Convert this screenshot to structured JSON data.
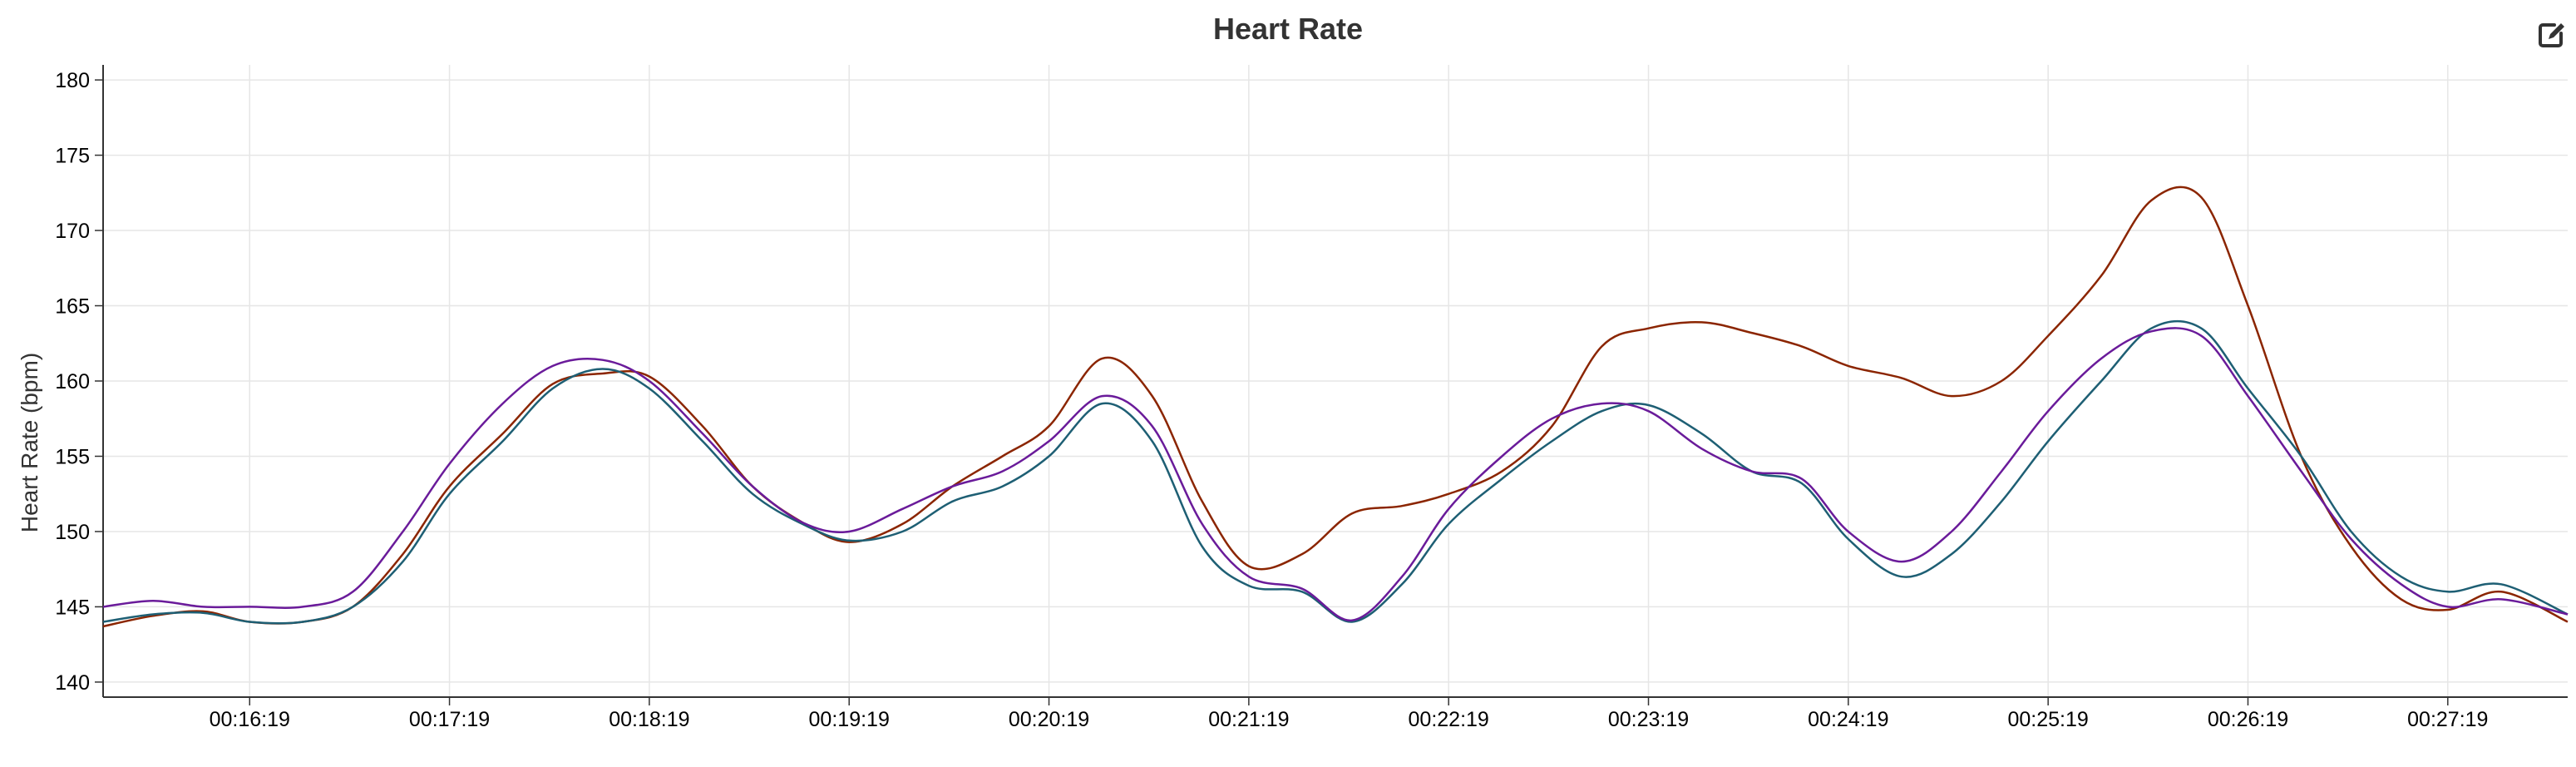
{
  "header": {
    "edit_icon": "edit-icon"
  },
  "chart_data": {
    "type": "line",
    "title": "Heart Rate",
    "xlabel": "",
    "ylabel": "Heart Rate (bpm)",
    "grid": true,
    "xlim": [
      "00:15:35",
      "00:27:55"
    ],
    "ylim": [
      139,
      181
    ],
    "x_ticks": [
      "00:16:19",
      "00:17:19",
      "00:18:19",
      "00:19:19",
      "00:20:19",
      "00:21:19",
      "00:22:19",
      "00:23:19",
      "00:24:19",
      "00:25:19",
      "00:26:19",
      "00:27:19"
    ],
    "y_ticks": [
      140,
      145,
      150,
      155,
      160,
      165,
      170,
      175,
      180
    ],
    "series": [
      {
        "color": "#8B2500",
        "points": [
          [
            "00:15:35",
            143.7
          ],
          [
            "00:15:50",
            144.4
          ],
          [
            "00:16:05",
            144.7
          ],
          [
            "00:16:19",
            144.0
          ],
          [
            "00:16:35",
            144.0
          ],
          [
            "00:16:50",
            145.0
          ],
          [
            "00:17:05",
            148.5
          ],
          [
            "00:17:19",
            153.0
          ],
          [
            "00:17:35",
            156.5
          ],
          [
            "00:17:50",
            159.8
          ],
          [
            "00:18:05",
            160.5
          ],
          [
            "00:18:19",
            160.3
          ],
          [
            "00:18:35",
            157.0
          ],
          [
            "00:18:50",
            153.0
          ],
          [
            "00:19:05",
            150.6
          ],
          [
            "00:19:19",
            149.3
          ],
          [
            "00:19:35",
            150.5
          ],
          [
            "00:19:50",
            153.0
          ],
          [
            "00:20:05",
            155.0
          ],
          [
            "00:20:19",
            157.0
          ],
          [
            "00:20:35",
            161.5
          ],
          [
            "00:20:50",
            159.0
          ],
          [
            "00:21:05",
            152.0
          ],
          [
            "00:21:19",
            147.7
          ],
          [
            "00:21:35",
            148.5
          ],
          [
            "00:21:50",
            151.2
          ],
          [
            "00:22:05",
            151.7
          ],
          [
            "00:22:19",
            152.5
          ],
          [
            "00:22:35",
            154.0
          ],
          [
            "00:22:50",
            157.0
          ],
          [
            "00:23:05",
            162.3
          ],
          [
            "00:23:19",
            163.5
          ],
          [
            "00:23:35",
            163.9
          ],
          [
            "00:23:50",
            163.2
          ],
          [
            "00:24:05",
            162.3
          ],
          [
            "00:24:19",
            161.0
          ],
          [
            "00:24:35",
            160.2
          ],
          [
            "00:24:50",
            159.0
          ],
          [
            "00:25:05",
            160.0
          ],
          [
            "00:25:19",
            163.0
          ],
          [
            "00:25:35",
            167.0
          ],
          [
            "00:25:50",
            172.0
          ],
          [
            "00:26:05",
            172.2
          ],
          [
            "00:26:19",
            165.0
          ],
          [
            "00:26:35",
            155.0
          ],
          [
            "00:26:50",
            149.0
          ],
          [
            "00:27:05",
            145.5
          ],
          [
            "00:27:19",
            144.8
          ],
          [
            "00:27:35",
            146.0
          ],
          [
            "00:27:55",
            144.0
          ]
        ]
      },
      {
        "color": "#1E5F74",
        "points": [
          [
            "00:15:35",
            144.0
          ],
          [
            "00:15:50",
            144.5
          ],
          [
            "00:16:05",
            144.6
          ],
          [
            "00:16:19",
            144.0
          ],
          [
            "00:16:35",
            144.0
          ],
          [
            "00:16:50",
            145.0
          ],
          [
            "00:17:05",
            148.0
          ],
          [
            "00:17:19",
            152.5
          ],
          [
            "00:17:35",
            156.0
          ],
          [
            "00:17:50",
            159.5
          ],
          [
            "00:18:05",
            160.8
          ],
          [
            "00:18:19",
            159.5
          ],
          [
            "00:18:35",
            156.0
          ],
          [
            "00:18:50",
            152.5
          ],
          [
            "00:19:05",
            150.5
          ],
          [
            "00:19:19",
            149.4
          ],
          [
            "00:19:35",
            150.0
          ],
          [
            "00:19:50",
            152.0
          ],
          [
            "00:20:05",
            153.0
          ],
          [
            "00:20:19",
            155.0
          ],
          [
            "00:20:35",
            158.5
          ],
          [
            "00:20:50",
            156.0
          ],
          [
            "00:21:05",
            149.0
          ],
          [
            "00:21:19",
            146.4
          ],
          [
            "00:21:35",
            146.0
          ],
          [
            "00:21:50",
            144.0
          ],
          [
            "00:22:05",
            146.5
          ],
          [
            "00:22:19",
            150.5
          ],
          [
            "00:22:35",
            153.5
          ],
          [
            "00:22:50",
            156.0
          ],
          [
            "00:23:05",
            158.0
          ],
          [
            "00:23:19",
            158.4
          ],
          [
            "00:23:35",
            156.5
          ],
          [
            "00:23:50",
            154.0
          ],
          [
            "00:24:05",
            153.2
          ],
          [
            "00:24:19",
            149.5
          ],
          [
            "00:24:35",
            147.0
          ],
          [
            "00:24:50",
            148.5
          ],
          [
            "00:25:05",
            152.0
          ],
          [
            "00:25:19",
            156.0
          ],
          [
            "00:25:35",
            160.0
          ],
          [
            "00:25:50",
            163.5
          ],
          [
            "00:26:05",
            163.5
          ],
          [
            "00:26:19",
            159.5
          ],
          [
            "00:26:35",
            155.0
          ],
          [
            "00:26:50",
            150.0
          ],
          [
            "00:27:05",
            147.0
          ],
          [
            "00:27:19",
            146.0
          ],
          [
            "00:27:35",
            146.5
          ],
          [
            "00:27:55",
            144.5
          ]
        ]
      },
      {
        "color": "#6A1B9A",
        "points": [
          [
            "00:15:35",
            145.0
          ],
          [
            "00:15:50",
            145.4
          ],
          [
            "00:16:05",
            145.0
          ],
          [
            "00:16:19",
            145.0
          ],
          [
            "00:16:35",
            145.0
          ],
          [
            "00:16:50",
            146.0
          ],
          [
            "00:17:05",
            150.0
          ],
          [
            "00:17:19",
            154.5
          ],
          [
            "00:17:35",
            158.5
          ],
          [
            "00:17:50",
            161.0
          ],
          [
            "00:18:05",
            161.4
          ],
          [
            "00:18:19",
            160.0
          ],
          [
            "00:18:35",
            156.5
          ],
          [
            "00:18:50",
            153.0
          ],
          [
            "00:19:05",
            150.6
          ],
          [
            "00:19:19",
            150.0
          ],
          [
            "00:19:35",
            151.5
          ],
          [
            "00:19:50",
            153.0
          ],
          [
            "00:20:05",
            154.0
          ],
          [
            "00:20:19",
            156.0
          ],
          [
            "00:20:35",
            159.0
          ],
          [
            "00:20:50",
            157.0
          ],
          [
            "00:21:05",
            150.5
          ],
          [
            "00:21:19",
            147.0
          ],
          [
            "00:21:35",
            146.2
          ],
          [
            "00:21:50",
            144.1
          ],
          [
            "00:22:05",
            147.0
          ],
          [
            "00:22:19",
            151.5
          ],
          [
            "00:22:35",
            155.0
          ],
          [
            "00:22:50",
            157.5
          ],
          [
            "00:23:05",
            158.5
          ],
          [
            "00:23:19",
            158.0
          ],
          [
            "00:23:35",
            155.5
          ],
          [
            "00:23:50",
            154.0
          ],
          [
            "00:24:05",
            153.5
          ],
          [
            "00:24:19",
            150.0
          ],
          [
            "00:24:35",
            148.0
          ],
          [
            "00:24:50",
            150.0
          ],
          [
            "00:25:05",
            154.0
          ],
          [
            "00:25:19",
            158.0
          ],
          [
            "00:25:35",
            161.5
          ],
          [
            "00:25:50",
            163.3
          ],
          [
            "00:26:05",
            163.0
          ],
          [
            "00:26:19",
            159.0
          ],
          [
            "00:26:35",
            154.0
          ],
          [
            "00:26:50",
            149.5
          ],
          [
            "00:27:05",
            146.5
          ],
          [
            "00:27:19",
            145.0
          ],
          [
            "00:27:35",
            145.5
          ],
          [
            "00:27:55",
            144.5
          ]
        ]
      }
    ]
  }
}
